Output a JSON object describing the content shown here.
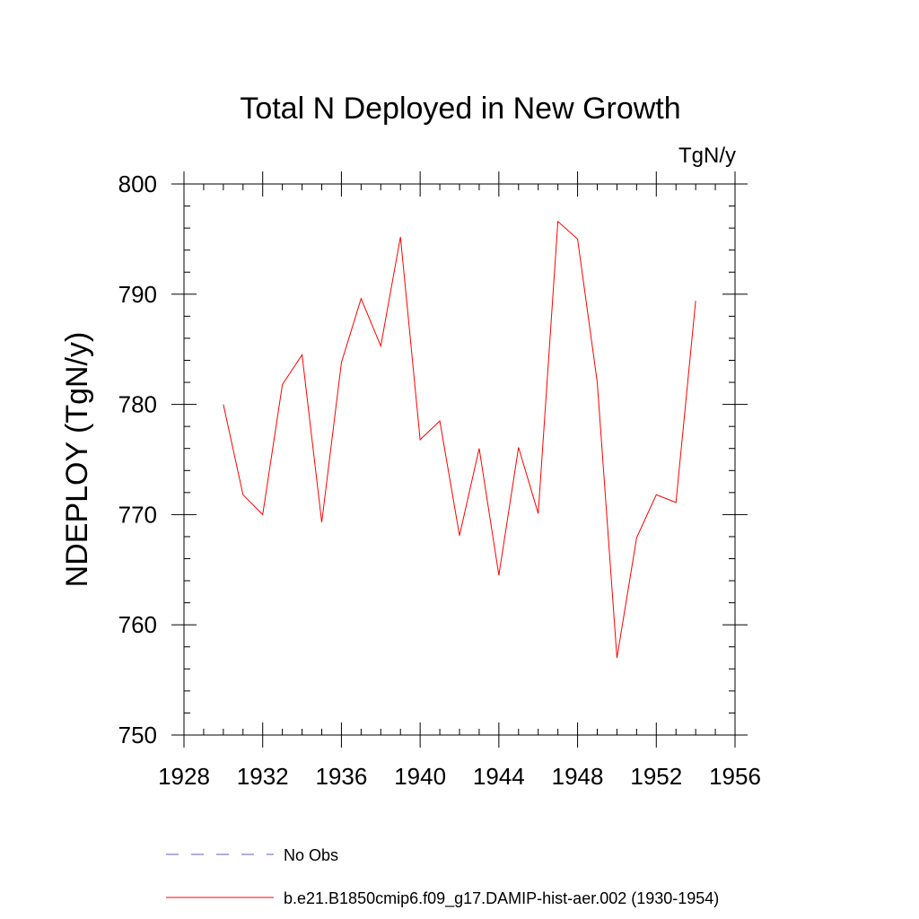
{
  "chart_data": {
    "type": "line",
    "title": "Total N Deployed in New Growth",
    "units_label": "TgN/y",
    "xlabel": "",
    "ylabel": "NDEPLOY  (TgN/y)",
    "xlim": [
      1928,
      1956
    ],
    "ylim": [
      750,
      800
    ],
    "x_ticks": [
      1928,
      1932,
      1936,
      1940,
      1944,
      1948,
      1952,
      1956
    ],
    "y_ticks": [
      750,
      760,
      770,
      780,
      790,
      800
    ],
    "grid": false,
    "series": [
      {
        "name": "b.e21.B1850cmip6.f09_g17.DAMIP-hist-aer.002 (1930-1954)",
        "color": "#ff0000",
        "x": [
          1930,
          1931,
          1932,
          1933,
          1934,
          1935,
          1936,
          1937,
          1938,
          1939,
          1940,
          1941,
          1942,
          1943,
          1944,
          1945,
          1946,
          1947,
          1948,
          1949,
          1950,
          1951,
          1952,
          1953,
          1954
        ],
        "y": [
          780.0,
          771.8,
          770.0,
          781.8,
          784.5,
          769.3,
          783.8,
          789.6,
          785.3,
          795.2,
          776.8,
          778.5,
          768.1,
          776.0,
          764.5,
          776.1,
          770.1,
          796.6,
          795.0,
          782.0,
          757.0,
          767.9,
          771.8,
          771.1,
          789.4
        ]
      }
    ],
    "legend": {
      "placement": "bottom",
      "entries": [
        {
          "label": "No Obs",
          "color": "#6a5acd",
          "style": "dashed"
        },
        {
          "label": "b.e21.B1850cmip6.f09_g17.DAMIP-hist-aer.002 (1930-1954)",
          "color": "#ff0000",
          "style": "solid"
        }
      ]
    }
  }
}
